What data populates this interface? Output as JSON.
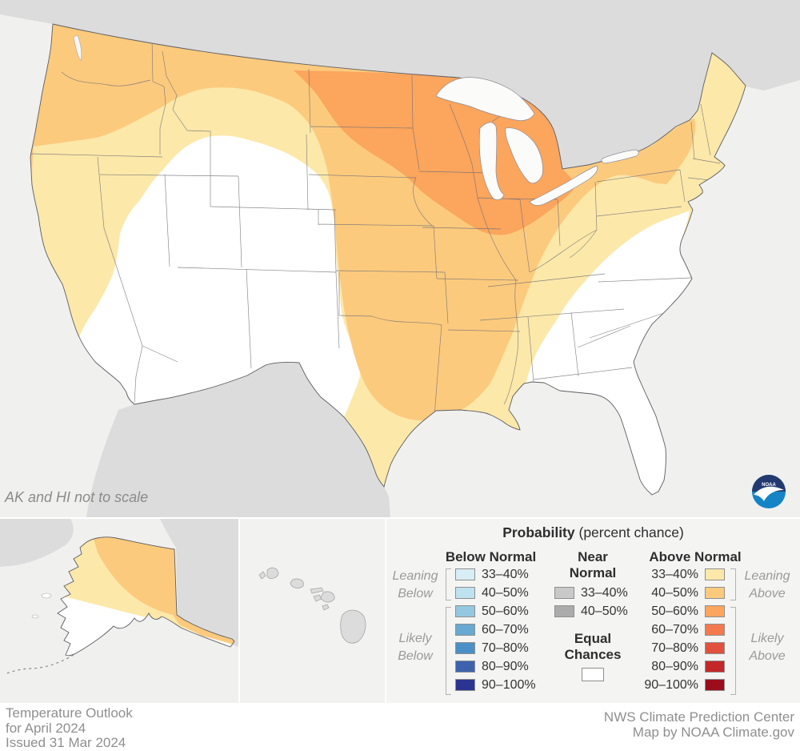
{
  "map": {
    "note": "AK and HI not to scale",
    "logo_text": "NOAA",
    "colors": {
      "ocean": "#f0f0ee",
      "foreign_land": "#dcdcdc",
      "equal_chances": "#ffffff",
      "above_33_40": "#fce8a9",
      "above_40_50": "#fcca7d",
      "above_50_60": "#fba55d",
      "near_normal": "#d9d9d9"
    }
  },
  "legend": {
    "title": "Probability",
    "title_suffix": " (percent chance)",
    "below": {
      "header": "Below Normal",
      "rows": [
        {
          "range": "33–40%",
          "color": "#d9edf6"
        },
        {
          "range": "40–50%",
          "color": "#bfe2f0"
        },
        {
          "range": "50–60%",
          "color": "#94c8e1"
        },
        {
          "range": "60–70%",
          "color": "#67a9d2"
        },
        {
          "range": "70–80%",
          "color": "#4a90c6"
        },
        {
          "range": "80–90%",
          "color": "#3d63ae"
        },
        {
          "range": "90–100%",
          "color": "#2b3591"
        }
      ],
      "leaning": [
        "Leaning",
        "Below"
      ],
      "likely": [
        "Likely",
        "Below"
      ]
    },
    "near": {
      "header": [
        "Near",
        "Normal"
      ],
      "rows": [
        {
          "range": "33–40%",
          "color": "#c9c9c9"
        },
        {
          "range": "40–50%",
          "color": "#ababab"
        }
      ],
      "equal": [
        "Equal",
        "Chances"
      ],
      "equal_color": "#ffffff"
    },
    "above": {
      "header": "Above Normal",
      "rows": [
        {
          "range": "33–40%",
          "color": "#fce8a9"
        },
        {
          "range": "40–50%",
          "color": "#fcca7d"
        },
        {
          "range": "50–60%",
          "color": "#fba55d"
        },
        {
          "range": "60–70%",
          "color": "#f5794e"
        },
        {
          "range": "70–80%",
          "color": "#e1523e"
        },
        {
          "range": "80–90%",
          "color": "#c32728"
        },
        {
          "range": "90–100%",
          "color": "#9c0d1c"
        }
      ],
      "leaning": [
        "Leaning",
        "Above"
      ],
      "likely": [
        "Likely",
        "Above"
      ]
    }
  },
  "footer": {
    "left_lines": [
      "Temperature Outlook",
      "for April 2024",
      "Issued 31 Mar 2024"
    ],
    "right_lines": [
      "NWS Climate Prediction Center",
      "Map by NOAA Climate.gov"
    ]
  }
}
